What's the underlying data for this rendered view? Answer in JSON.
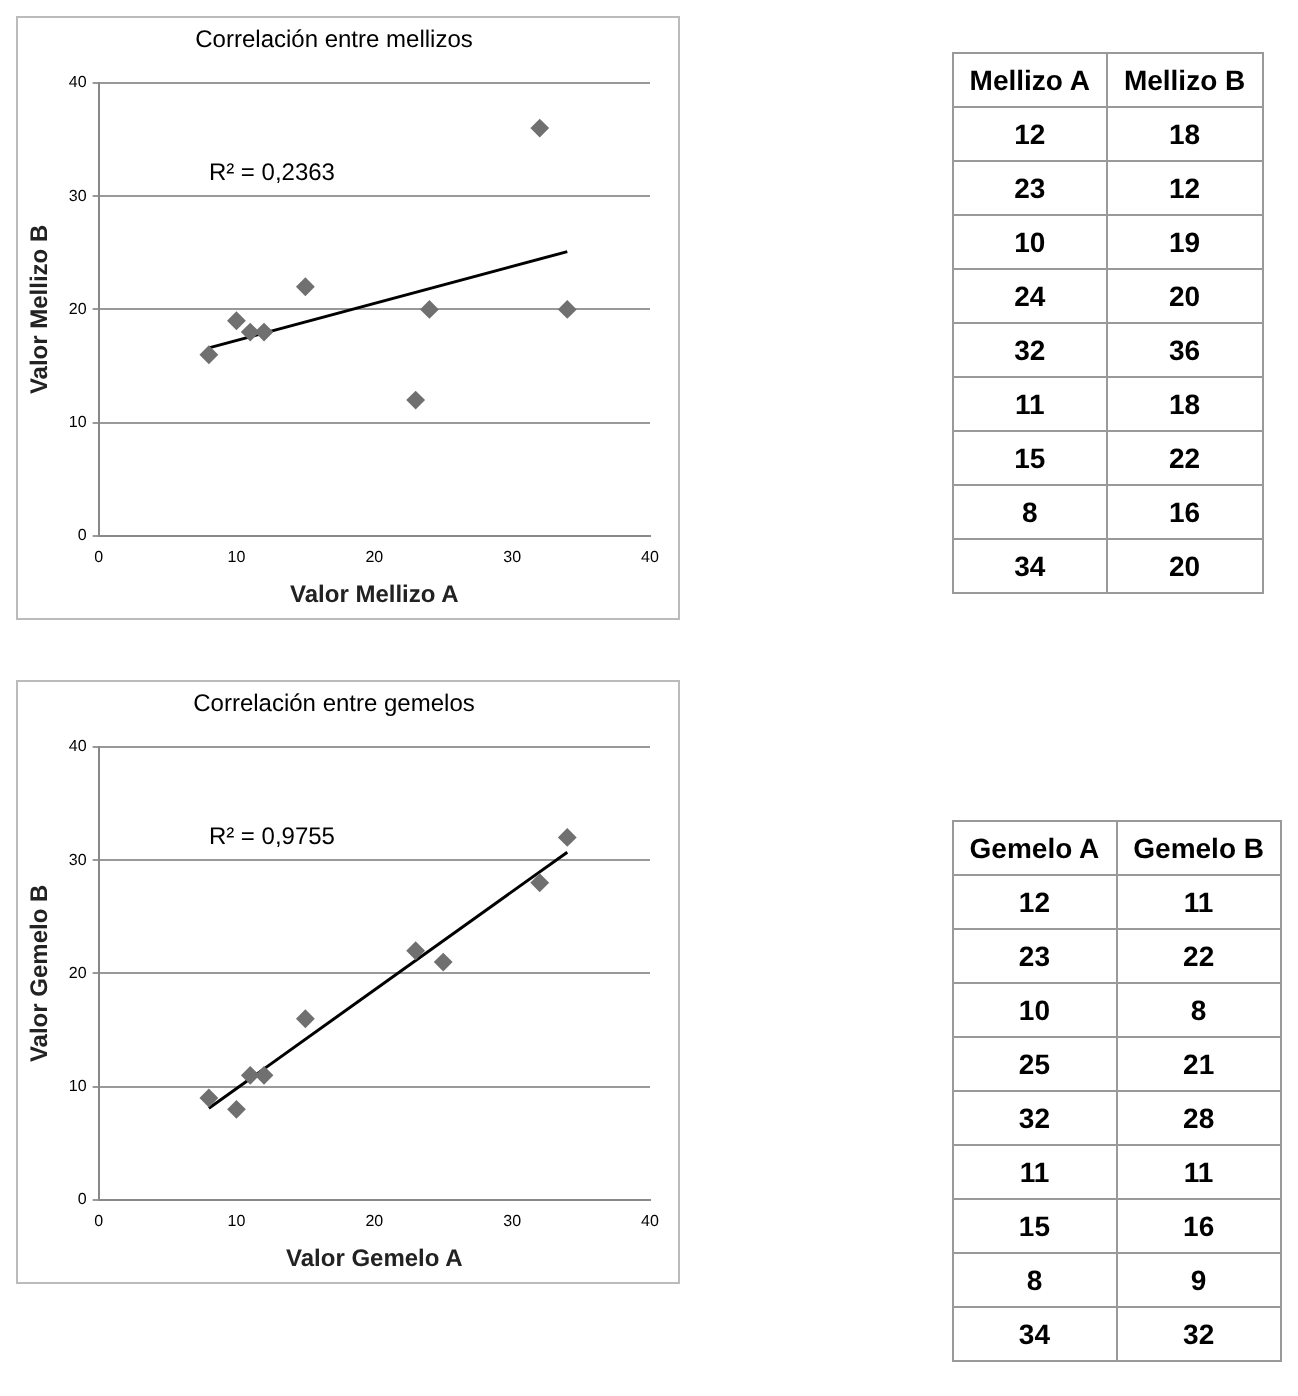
{
  "chart_data": [
    {
      "type": "scatter",
      "title": "Correlación entre mellizos",
      "xlabel": "Valor Mellizo A",
      "ylabel": "Valor Mellizo B",
      "xlim": [
        0,
        40
      ],
      "xticks": [
        0,
        10,
        20,
        30,
        40
      ],
      "ylim": [
        0,
        40
      ],
      "yticks": [
        0,
        10,
        20,
        30,
        40
      ],
      "grid": "y",
      "annotations": [
        "R² = 0,2363"
      ],
      "series": [
        {
          "marker": "diamond",
          "color": "#707070",
          "x": [
            12,
            23,
            10,
            24,
            32,
            11,
            15,
            8,
            34
          ],
          "values": [
            18,
            12,
            19,
            20,
            36,
            18,
            22,
            16,
            20
          ]
        },
        {
          "type": "line",
          "marker": "none",
          "color": "#000000",
          "x": [
            8,
            34
          ],
          "values": [
            16.6,
            25.1
          ]
        }
      ]
    },
    {
      "type": "other",
      "annotations": [
        "Mellizo A",
        "Mellizo B",
        "12",
        "18",
        "23",
        "12",
        "10",
        "19",
        "24",
        "20",
        "32",
        "36",
        "11",
        "18",
        "15",
        "22",
        "8",
        "16",
        "34",
        "20"
      ]
    },
    {
      "type": "scatter",
      "title": "Correlación entre gemelos",
      "xlabel": "Valor Gemelo A",
      "ylabel": "Valor Gemelo B",
      "xlim": [
        0,
        40
      ],
      "xticks": [
        0,
        10,
        20,
        30,
        40
      ],
      "ylim": [
        0,
        40
      ],
      "yticks": [
        0,
        10,
        20,
        30,
        40
      ],
      "grid": "y",
      "annotations": [
        "R² = 0,9755"
      ],
      "series": [
        {
          "marker": "diamond",
          "color": "#707070",
          "x": [
            12,
            23,
            10,
            25,
            32,
            11,
            15,
            8,
            34
          ],
          "values": [
            11,
            22,
            8,
            21,
            28,
            11,
            16,
            9,
            32
          ]
        },
        {
          "type": "line",
          "marker": "none",
          "color": "#000000",
          "x": [
            8,
            34
          ],
          "values": [
            8.1,
            30.7
          ]
        }
      ]
    },
    {
      "type": "other",
      "annotations": [
        "Gemelo A",
        "Gemelo B",
        "12",
        "11",
        "23",
        "22",
        "10",
        "8",
        "25",
        "21",
        "32",
        "28",
        "11",
        "11",
        "15",
        "16",
        "8",
        "9",
        "34",
        "32"
      ]
    }
  ]
}
